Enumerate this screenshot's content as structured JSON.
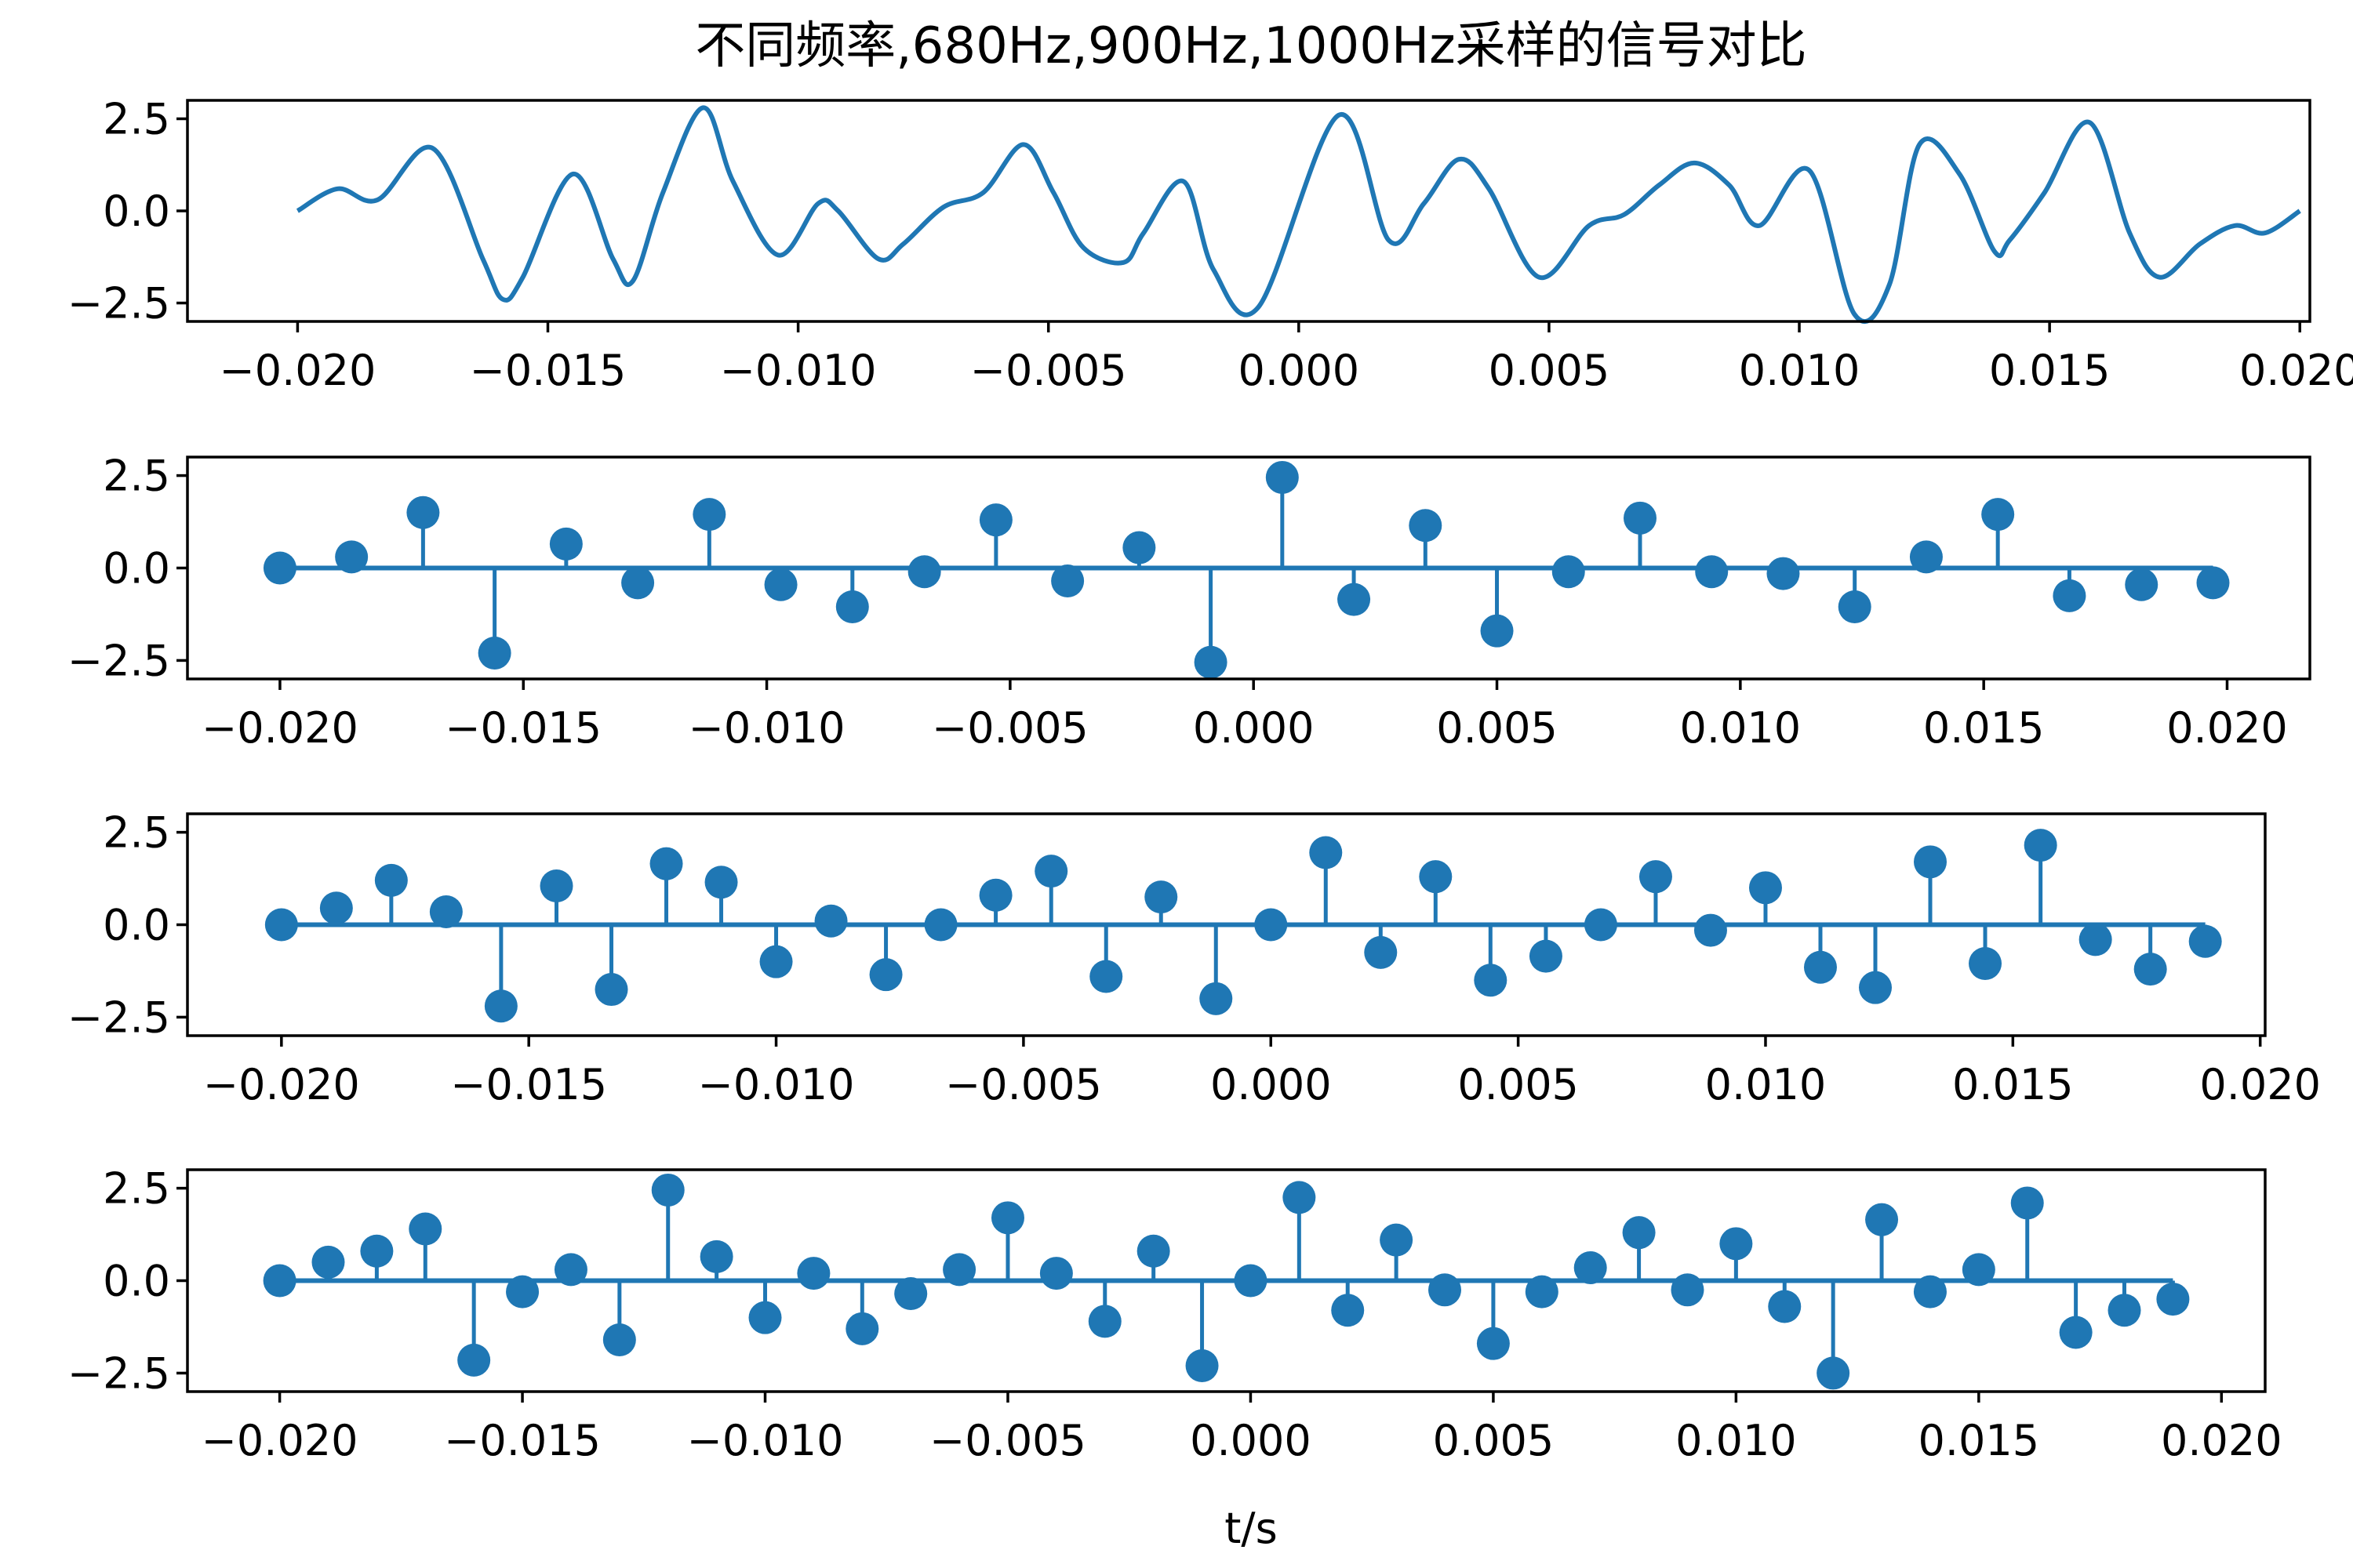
{
  "figure": {
    "title": "不同频率,680Hz,900Hz,1000Hz采样的信号对比",
    "xlabel": "t/s",
    "series_color": "#1f77b4"
  },
  "chart_data": [
    {
      "type": "line",
      "title": "",
      "xlim": [
        -0.0222,
        0.0202
      ],
      "ylim": [
        -3.0,
        3.0
      ],
      "xticks": [
        -0.02,
        -0.015,
        -0.01,
        -0.005,
        0.0,
        0.005,
        0.01,
        0.015,
        0.02
      ],
      "xtick_labels": [
        "−0.020",
        "−0.015",
        "−0.010",
        "−0.005",
        "0.000",
        "0.005",
        "0.010",
        "0.015",
        "0.020"
      ],
      "yticks": [
        -2.5,
        0.0,
        2.5
      ],
      "ytick_labels": [
        "−2.5",
        "0.0",
        "2.5"
      ],
      "x": [
        -0.02,
        -0.0192,
        -0.0184,
        -0.0173,
        -0.0163,
        -0.0159,
        -0.0155,
        -0.0145,
        -0.0137,
        -0.0133,
        -0.0127,
        -0.0119,
        -0.0113,
        -0.0104,
        -0.0096,
        -0.0092,
        -0.0084,
        -0.0079,
        -0.0071,
        -0.0063,
        -0.0055,
        -0.0049,
        -0.0043,
        -0.0035,
        -0.0031,
        -0.0023,
        -0.0017,
        -0.0008,
        0.0008,
        0.0018,
        0.0025,
        0.0032,
        0.0038,
        0.0048,
        0.0058,
        0.0065,
        0.0072,
        0.0079,
        0.0086,
        0.0092,
        0.0102,
        0.0111,
        0.0118,
        0.0124,
        0.0132,
        0.0139,
        0.0142,
        0.0149,
        0.0158,
        0.0166,
        0.0172,
        0.018,
        0.0187,
        0.0193,
        0.02
      ],
      "y": [
        0.0,
        0.6,
        0.3,
        1.7,
        -1.3,
        -2.4,
        -1.8,
        1.0,
        -1.3,
        -1.9,
        0.5,
        2.8,
        0.8,
        -1.2,
        0.2,
        0.0,
        -1.3,
        -0.9,
        0.1,
        0.5,
        1.8,
        0.5,
        -1.0,
        -1.4,
        -0.6,
        0.8,
        -1.6,
        -2.6,
        2.6,
        -0.8,
        0.2,
        1.4,
        0.6,
        -1.8,
        -0.4,
        -0.1,
        0.7,
        1.3,
        0.7,
        -0.4,
        1.1,
        -2.8,
        -2.0,
        1.8,
        1.0,
        -1.1,
        -0.8,
        0.5,
        2.4,
        -0.6,
        -1.8,
        -0.9,
        -0.4,
        -0.6,
        0.0
      ]
    },
    {
      "type": "stem",
      "title": "",
      "xlim": [
        -0.0219,
        0.0217
      ],
      "ylim": [
        -3.0,
        3.0
      ],
      "xticks": [
        -0.02,
        -0.015,
        -0.01,
        -0.005,
        0.0,
        0.005,
        0.01,
        0.015,
        0.02
      ],
      "xtick_labels": [
        "−0.020",
        "−0.015",
        "−0.010",
        "−0.005",
        "0.000",
        "0.005",
        "0.010",
        "0.015",
        "0.020"
      ],
      "yticks": [
        -2.5,
        0.0,
        2.5
      ],
      "ytick_labels": [
        "−2.5",
        "0.0",
        "2.5"
      ],
      "x": [
        -0.02,
        -0.01853,
        -0.01706,
        -0.01559,
        -0.01412,
        -0.01265,
        -0.01118,
        -0.00971,
        -0.00824,
        -0.00676,
        -0.00529,
        -0.00382,
        -0.00235,
        -0.00088,
        0.00059,
        0.00206,
        0.00353,
        0.005,
        0.00647,
        0.00794,
        0.00941,
        0.01088,
        0.01235,
        0.01382,
        0.01529,
        0.01676,
        0.01824,
        0.01971
      ],
      "y": [
        0.0,
        0.3,
        1.5,
        -2.3,
        0.65,
        -0.4,
        1.45,
        -0.45,
        -1.05,
        -0.1,
        1.3,
        -0.35,
        0.55,
        -2.55,
        2.45,
        -0.85,
        1.15,
        -1.7,
        -0.1,
        1.35,
        -0.1,
        -0.15,
        -1.05,
        0.3,
        1.45,
        -0.75,
        -0.45,
        -0.4
      ]
    },
    {
      "type": "stem",
      "title": "",
      "xlim": [
        -0.0219,
        0.0201
      ],
      "ylim": [
        -3.0,
        3.0
      ],
      "xticks": [
        -0.02,
        -0.015,
        -0.01,
        -0.005,
        0.0,
        0.005,
        0.01,
        0.015,
        0.02
      ],
      "xtick_labels": [
        "−0.020",
        "−0.015",
        "−0.010",
        "−0.005",
        "0.000",
        "0.005",
        "0.010",
        "0.015",
        "0.020"
      ],
      "yticks": [
        -2.5,
        0.0,
        2.5
      ],
      "ytick_labels": [
        "−2.5",
        "0.0",
        "2.5"
      ],
      "x": [
        -0.02,
        -0.01889,
        -0.01778,
        -0.01667,
        -0.01556,
        -0.01444,
        -0.01333,
        -0.01222,
        -0.01111,
        -0.01,
        -0.00889,
        -0.00778,
        -0.00667,
        -0.00556,
        -0.00444,
        -0.00333,
        -0.00222,
        -0.00111,
        0.0,
        0.00111,
        0.00222,
        0.00333,
        0.00444,
        0.00556,
        0.00667,
        0.00778,
        0.00889,
        0.01,
        0.01111,
        0.01222,
        0.01333,
        0.01444,
        0.01556,
        0.01667,
        0.01778,
        0.01889
      ],
      "y": [
        0.0,
        0.45,
        1.2,
        0.35,
        -2.2,
        1.05,
        -1.75,
        1.65,
        1.15,
        -1.0,
        0.1,
        -1.35,
        0.0,
        0.8,
        1.45,
        -1.4,
        0.75,
        -2.0,
        0.0,
        1.95,
        -0.75,
        1.3,
        -1.5,
        -0.85,
        0.0,
        1.3,
        -0.15,
        1.0,
        -1.15,
        -1.7,
        1.7,
        -1.05,
        2.15,
        -0.4,
        -1.2,
        -0.45
      ]
    },
    {
      "type": "stem",
      "title": "",
      "xlim": [
        -0.0219,
        0.0209
      ],
      "ylim": [
        -3.0,
        3.0
      ],
      "xticks": [
        -0.02,
        -0.015,
        -0.01,
        -0.005,
        0.0,
        0.005,
        0.01,
        0.015,
        0.02
      ],
      "xtick_labels": [
        "−0.020",
        "−0.015",
        "−0.010",
        "−0.005",
        "0.000",
        "0.005",
        "0.010",
        "0.015",
        "0.020"
      ],
      "yticks": [
        -2.5,
        0.0,
        2.5
      ],
      "ytick_labels": [
        "−2.5",
        "0.0",
        "2.5"
      ],
      "x": [
        -0.02,
        -0.019,
        -0.018,
        -0.017,
        -0.016,
        -0.015,
        -0.014,
        -0.013,
        -0.012,
        -0.011,
        -0.01,
        -0.009,
        -0.008,
        -0.007,
        -0.006,
        -0.005,
        -0.004,
        -0.003,
        -0.002,
        -0.001,
        0.0,
        0.001,
        0.002,
        0.003,
        0.004,
        0.005,
        0.006,
        0.007,
        0.008,
        0.009,
        0.01,
        0.011,
        0.012,
        0.013,
        0.014,
        0.015,
        0.016,
        0.017,
        0.018,
        0.019
      ],
      "y": [
        0.0,
        0.5,
        0.8,
        1.4,
        -2.15,
        -0.3,
        0.3,
        -1.6,
        2.45,
        0.65,
        -1.0,
        0.2,
        -1.3,
        -0.35,
        0.3,
        1.7,
        0.2,
        -1.1,
        0.8,
        -2.3,
        0.0,
        2.25,
        -0.8,
        1.1,
        -0.25,
        -1.7,
        -0.3,
        0.35,
        1.3,
        -0.25,
        1.0,
        -0.7,
        -2.5,
        1.65,
        -0.3,
        0.3,
        2.1,
        -1.4,
        -0.8,
        -0.5
      ]
    }
  ]
}
